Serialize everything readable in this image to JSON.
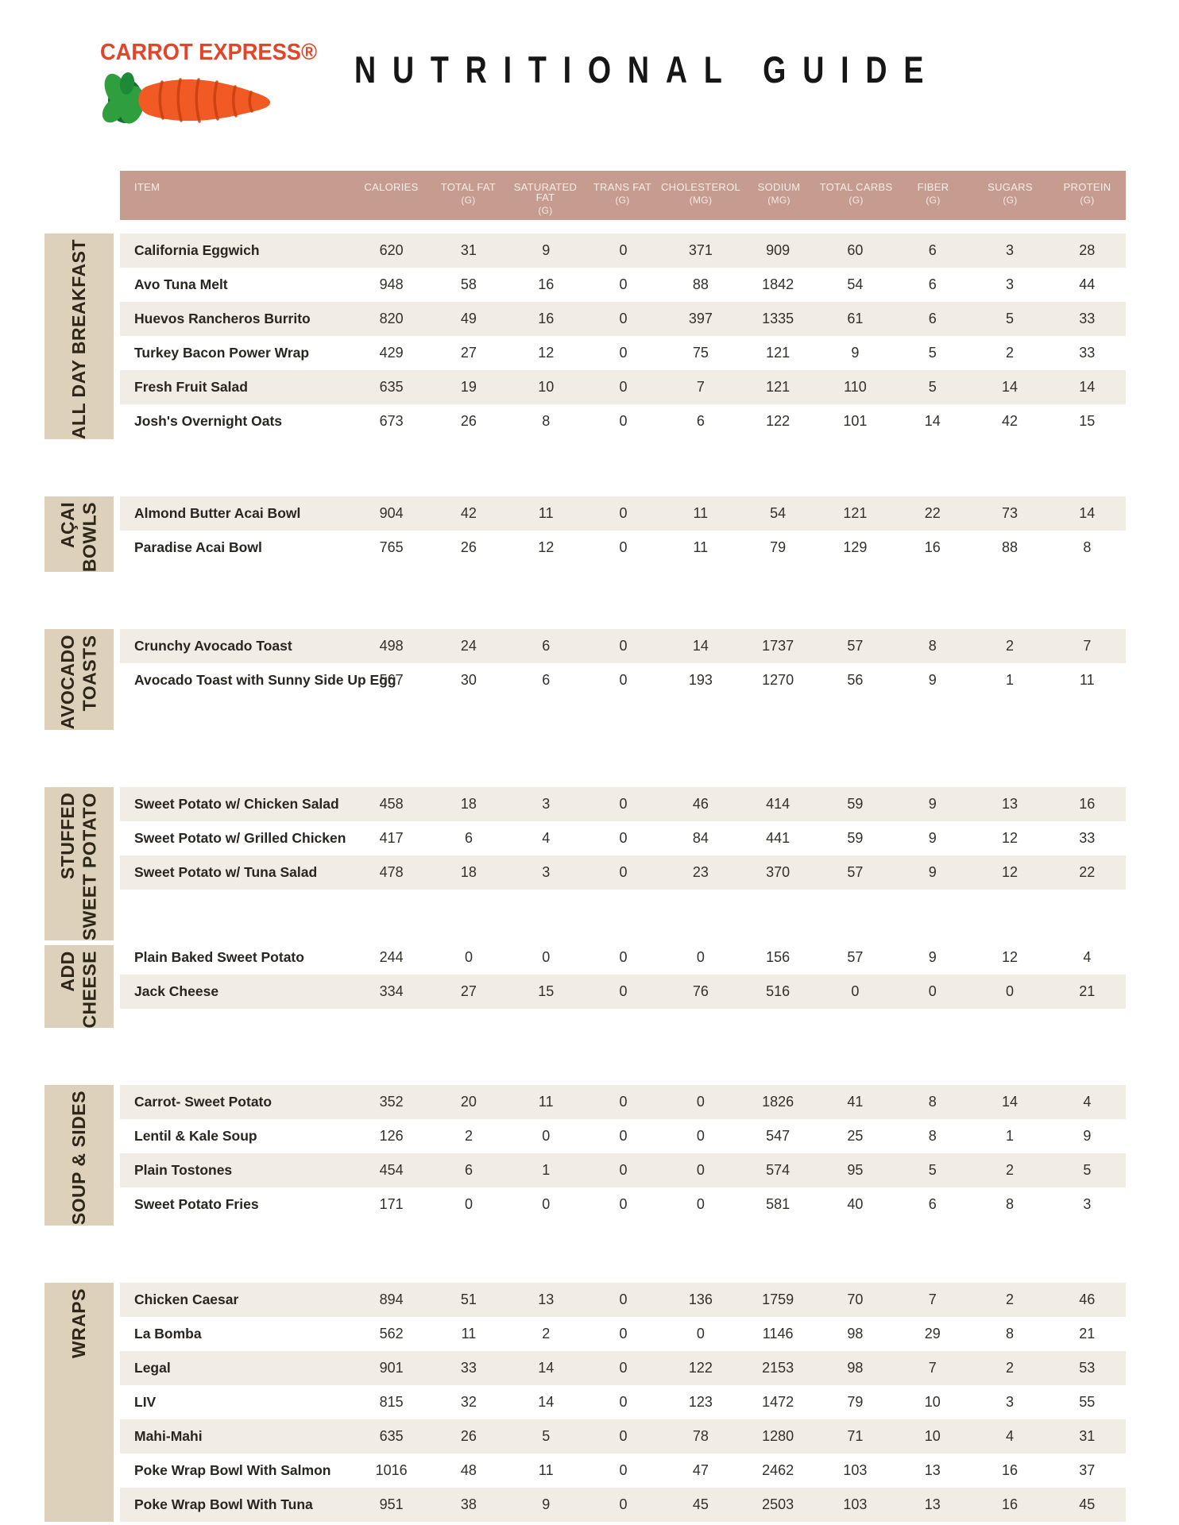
{
  "brand": {
    "logo_text": "CARROT EXPRESS®",
    "title": "NUTRITIONAL GUIDE"
  },
  "colors": {
    "header_band": "#c69c90",
    "row_stripe": "#f1ede4",
    "category_block": "#ddd1bc",
    "brand_red": "#e2452a",
    "carrot_orange": "#f15a24",
    "carrot_ridge": "#c8400f",
    "leaf_green": "#2f9e3f",
    "leaf_green_dark": "#176b2d",
    "text_dark": "#292521"
  },
  "table": {
    "columns": [
      {
        "label": "ITEM",
        "unit": ""
      },
      {
        "label": "CALORIES",
        "unit": ""
      },
      {
        "label": "TOTAL FAT",
        "unit": "(G)"
      },
      {
        "label": "SATURATED FAT",
        "unit": "(G)"
      },
      {
        "label": "TRANS FAT",
        "unit": "(G)"
      },
      {
        "label": "CHOLESTEROL",
        "unit": "(MG)"
      },
      {
        "label": "SODIUM",
        "unit": "(MG)"
      },
      {
        "label": "TOTAL CARBS",
        "unit": "(G)"
      },
      {
        "label": "FIBER",
        "unit": "(G)"
      },
      {
        "label": "SUGARS",
        "unit": "(G)"
      },
      {
        "label": "PROTEIN",
        "unit": "(G)"
      }
    ],
    "sections": [
      {
        "category": "ALL DAY BREAKFAST",
        "category_lines": [
          "ALL DAY BREAKFAST"
        ],
        "rows": [
          {
            "item": "California Eggwich",
            "values": [
              620,
              31,
              9,
              0,
              371,
              909,
              60,
              6,
              3,
              28
            ]
          },
          {
            "item": "Avo Tuna Melt",
            "values": [
              948,
              58,
              16,
              0,
              88,
              1842,
              54,
              6,
              3,
              44
            ]
          },
          {
            "item": "Huevos Rancheros Burrito",
            "values": [
              820,
              49,
              16,
              0,
              397,
              1335,
              61,
              6,
              5,
              33
            ]
          },
          {
            "item": "Turkey Bacon Power Wrap",
            "values": [
              429,
              27,
              12,
              0,
              75,
              121,
              9,
              5,
              2,
              33
            ]
          },
          {
            "item": "Fresh Fruit Salad",
            "values": [
              635,
              19,
              10,
              0,
              7,
              121,
              110,
              5,
              14,
              14
            ]
          },
          {
            "item": "Josh's Overnight Oats",
            "values": [
              673,
              26,
              8,
              0,
              6,
              122,
              101,
              14,
              42,
              15
            ]
          }
        ]
      },
      {
        "category": "AÇAI BOWLS",
        "category_lines": [
          "AÇAI",
          "BOWLS"
        ],
        "rows": [
          {
            "item": "Almond Butter Acai Bowl",
            "values": [
              904,
              42,
              11,
              0,
              11,
              54,
              121,
              22,
              73,
              14
            ]
          },
          {
            "item": "Paradise Acai Bowl",
            "values": [
              765,
              26,
              12,
              0,
              11,
              79,
              129,
              16,
              88,
              8
            ]
          }
        ]
      },
      {
        "category": "AVOCADO TOASTS",
        "category_lines": [
          "AVOCADO",
          "TOASTS"
        ],
        "rows": [
          {
            "item": "Crunchy Avocado Toast",
            "values": [
              498,
              24,
              6,
              0,
              14,
              1737,
              57,
              8,
              2,
              7
            ]
          },
          {
            "item": "Avocado Toast with Sunny Side Up Egg",
            "values": [
              567,
              30,
              6,
              0,
              193,
              1270,
              56,
              9,
              1,
              11
            ]
          }
        ]
      },
      {
        "category": "STUFFED SWEET POTATO",
        "category_lines": [
          "STUFFED",
          "SWEET POTATO"
        ],
        "rows": [
          {
            "item": "Sweet Potato w/ Chicken Salad",
            "values": [
              458,
              18,
              3,
              0,
              46,
              414,
              59,
              9,
              13,
              16
            ]
          },
          {
            "item": "Sweet Potato w/ Grilled Chicken",
            "values": [
              417,
              6,
              4,
              0,
              84,
              441,
              59,
              9,
              12,
              33
            ]
          },
          {
            "item": "Sweet Potato w/ Tuna Salad",
            "values": [
              478,
              18,
              3,
              0,
              23,
              370,
              57,
              9,
              12,
              22
            ]
          }
        ]
      },
      {
        "category": "ADD CHEESE",
        "category_lines": [
          "ADD",
          "CHEESE"
        ],
        "joined_with_previous": true,
        "stripe_offset": 1,
        "rows": [
          {
            "item": "Plain Baked Sweet Potato",
            "values": [
              244,
              0,
              0,
              0,
              0,
              156,
              57,
              9,
              12,
              4
            ]
          },
          {
            "item": "Jack Cheese",
            "values": [
              334,
              27,
              15,
              0,
              76,
              516,
              0,
              0,
              0,
              21
            ]
          }
        ]
      },
      {
        "category": "SOUP & SIDES",
        "category_lines": [
          "SOUP & SIDES"
        ],
        "rows": [
          {
            "item": "Carrot- Sweet Potato",
            "values": [
              352,
              20,
              11,
              0,
              0,
              1826,
              41,
              8,
              14,
              4
            ]
          },
          {
            "item": "Lentil & Kale Soup",
            "values": [
              126,
              2,
              0,
              0,
              0,
              547,
              25,
              8,
              1,
              9
            ]
          },
          {
            "item": "Plain Tostones",
            "values": [
              454,
              6,
              1,
              0,
              0,
              574,
              95,
              5,
              2,
              5
            ]
          },
          {
            "item": "Sweet Potato Fries",
            "values": [
              171,
              0,
              0,
              0,
              0,
              581,
              40,
              6,
              8,
              3
            ]
          }
        ]
      },
      {
        "category": "WRAPS",
        "category_lines": [
          "WRAPS"
        ],
        "rows": [
          {
            "item": "Chicken Caesar",
            "values": [
              894,
              51,
              13,
              0,
              136,
              1759,
              70,
              7,
              2,
              46
            ]
          },
          {
            "item": "La Bomba",
            "values": [
              562,
              11,
              2,
              0,
              0,
              1146,
              98,
              29,
              8,
              21
            ]
          },
          {
            "item": "Legal",
            "values": [
              901,
              33,
              14,
              0,
              122,
              2153,
              98,
              7,
              2,
              53
            ]
          },
          {
            "item": "LIV",
            "values": [
              815,
              32,
              14,
              0,
              123,
              1472,
              79,
              10,
              3,
              55
            ]
          },
          {
            "item": "Mahi-Mahi",
            "values": [
              635,
              26,
              5,
              0,
              78,
              1280,
              71,
              10,
              4,
              31
            ]
          },
          {
            "item": "Poke Wrap Bowl With Salmon",
            "values": [
              1016,
              48,
              11,
              0,
              47,
              2462,
              103,
              13,
              16,
              37
            ]
          },
          {
            "item": "Poke Wrap Bowl With Tuna",
            "values": [
              951,
              38,
              9,
              0,
              45,
              2503,
              103,
              13,
              16,
              45
            ]
          }
        ]
      }
    ]
  }
}
